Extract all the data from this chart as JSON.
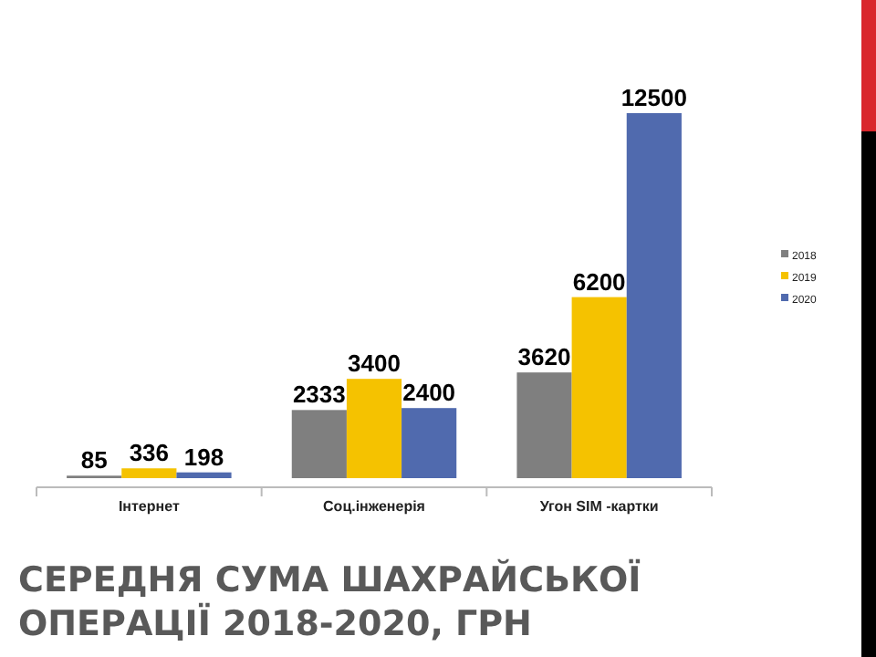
{
  "chart_data": {
    "type": "bar",
    "title": "СЕРЕДНЯ СУМА ШАХРАЙСЬКОЇ ОПЕРАЦІЇ 2018-2020, ГРН",
    "categories": [
      "Інтернет",
      "Соц.інженерія",
      "Угон SIM -картки"
    ],
    "series": [
      {
        "name": "2018",
        "color": "#7f7f7f",
        "values": [
          85,
          2333,
          3620
        ]
      },
      {
        "name": "2019",
        "color": "#f5c200",
        "values": [
          336,
          3400,
          6200
        ]
      },
      {
        "name": "2020",
        "color": "#506aae",
        "values": [
          198,
          2400,
          12500
        ]
      }
    ],
    "data_labels": true,
    "legend": "right",
    "grid": false
  }
}
